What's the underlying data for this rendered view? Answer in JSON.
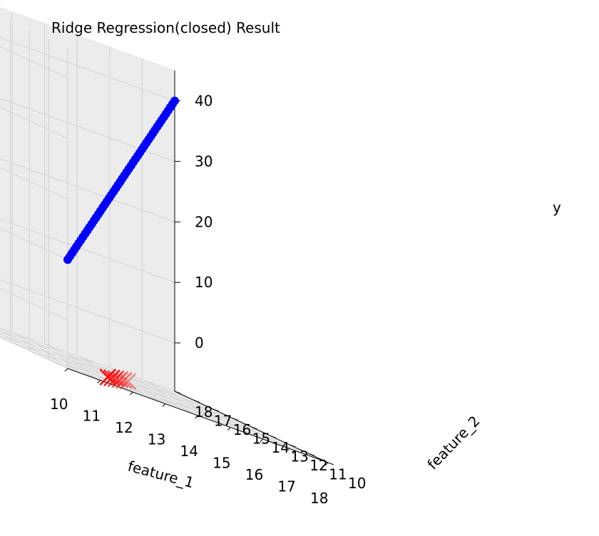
{
  "chart_data": {
    "type": "scatter3d",
    "title": "Ridge Regression(closed) Result",
    "axes": {
      "x": {
        "label": "feature_1",
        "ticks": [
          "10",
          "11",
          "12",
          "13",
          "14",
          "15",
          "16",
          "17",
          "18"
        ],
        "range": [
          10,
          18
        ]
      },
      "y": {
        "label": "feature_2",
        "ticks": [
          "10",
          "11",
          "12",
          "13",
          "14",
          "15",
          "16",
          "17",
          "18"
        ],
        "range": [
          10,
          18
        ]
      },
      "z": {
        "label": "y",
        "ticks": [
          "0",
          "10",
          "20",
          "30",
          "40"
        ],
        "range": [
          -8,
          45
        ]
      }
    },
    "grid": true,
    "series": [
      {
        "marker": "circle",
        "color": "#0000ff",
        "start": {
          "x": 10,
          "y": 10,
          "z": 10
        },
        "end": {
          "x": 18,
          "y": 18,
          "z": 40
        },
        "n_points": 50
      },
      {
        "marker": "x",
        "color": "#ff0000",
        "x": [
          13,
          13.3,
          13.6,
          13.9,
          14.2,
          14.5
        ],
        "y": [
          13,
          13.3,
          13.6,
          13.9,
          14.2,
          14.5
        ],
        "z": [
          -8,
          -8,
          -8,
          -8,
          -8,
          -8
        ]
      }
    ]
  }
}
